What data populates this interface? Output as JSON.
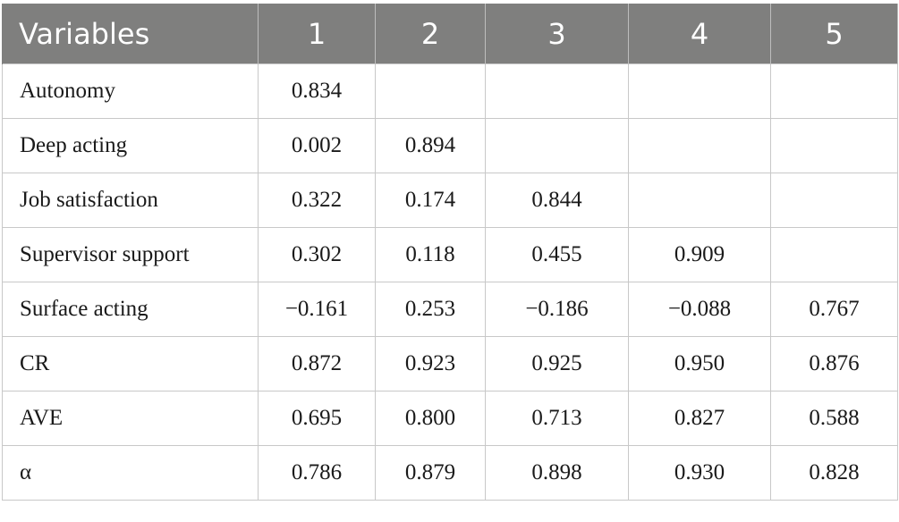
{
  "table": {
    "headers": [
      "Variables",
      "1",
      "2",
      "3",
      "4",
      "5"
    ],
    "rows": [
      {
        "label": "Autonomy",
        "values": [
          "0.834",
          "",
          "",
          "",
          ""
        ]
      },
      {
        "label": "Deep acting",
        "values": [
          "0.002",
          "0.894",
          "",
          "",
          ""
        ]
      },
      {
        "label": "Job satisfaction",
        "values": [
          "0.322",
          "0.174",
          "0.844",
          "",
          ""
        ]
      },
      {
        "label": "Supervisor support",
        "values": [
          "0.302",
          "0.118",
          "0.455",
          "0.909",
          ""
        ]
      },
      {
        "label": "Surface acting",
        "values": [
          "−0.161",
          "0.253",
          "−0.186",
          "−0.088",
          "0.767"
        ]
      },
      {
        "label": "CR",
        "values": [
          "0.872",
          "0.923",
          "0.925",
          "0.950",
          "0.876"
        ]
      },
      {
        "label": "AVE",
        "values": [
          "0.695",
          "0.800",
          "0.713",
          "0.827",
          "0.588"
        ]
      },
      {
        "label": "α",
        "values": [
          "0.786",
          "0.879",
          "0.898",
          "0.930",
          "0.828"
        ]
      }
    ]
  },
  "colors": {
    "header_bg": "#7f7f7e",
    "header_text": "#ffffff",
    "grid": "#c8c8c8"
  }
}
